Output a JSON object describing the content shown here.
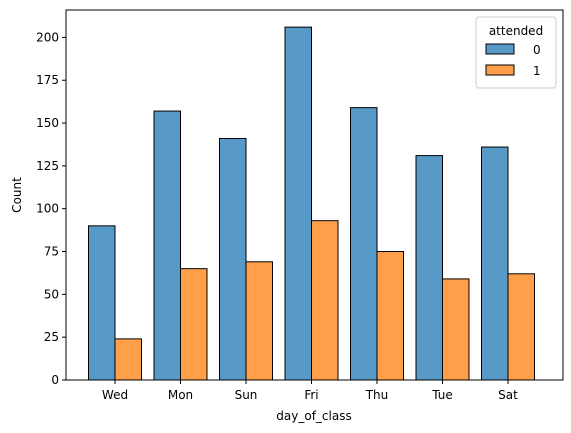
{
  "chart_data": {
    "type": "bar",
    "xlabel": "day_of_class",
    "ylabel": "Count",
    "categories": [
      "Wed",
      "Mon",
      "Sun",
      "Fri",
      "Thu",
      "Tue",
      "Sat"
    ],
    "series": [
      {
        "name": "0",
        "color": "#5799c7",
        "values": [
          90,
          157,
          141,
          206,
          159,
          131,
          136
        ]
      },
      {
        "name": "1",
        "color": "#ff9f4a",
        "values": [
          24,
          65,
          69,
          93,
          75,
          59,
          62
        ]
      }
    ],
    "ylim": [
      0,
      216
    ],
    "yticks": [
      0,
      25,
      50,
      75,
      100,
      125,
      150,
      175,
      200
    ],
    "legend": {
      "title": "attended",
      "placement": "top-right"
    },
    "grid": false
  }
}
